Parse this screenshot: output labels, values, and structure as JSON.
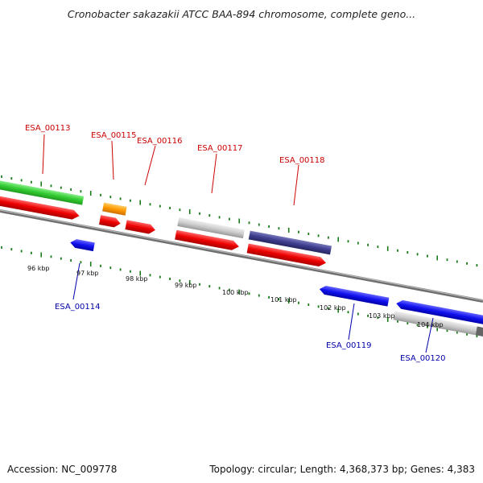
{
  "title": "Cronobacter sakazakii ATCC BAA-894 chromosome, complete geno...",
  "footer": {
    "accession": "Accession: NC_009778",
    "summary": "Topology: circular; Length: 4,368,373 bp; Genes: 4,383"
  },
  "colors": {
    "forward_label": "#cc0000",
    "reverse_label": "#0000aa",
    "cds": "#ee0000",
    "gene_green": "#33cc33",
    "gene_orange": "#ff9900",
    "gene_grey": "#c8c8c8",
    "gene_purple": "#3d3d8f",
    "gene_blue": "#1111ee",
    "axis": "#7a7a7a",
    "gc_dash": "#1a7a1a"
  },
  "axis_ticks": [
    "96 kbp",
    "97 kbp",
    "98 kbp",
    "99 kbp",
    "100 kbp",
    "101 kbp",
    "102 kbp",
    "103 kbp",
    "104 kbp"
  ],
  "gene_labels_forward": [
    "ESA_00113",
    "ESA_00115",
    "ESA_00116",
    "ESA_00117",
    "ESA_00118"
  ],
  "gene_labels_reverse": [
    "ESA_00114",
    "ESA_00119",
    "ESA_00120"
  ]
}
